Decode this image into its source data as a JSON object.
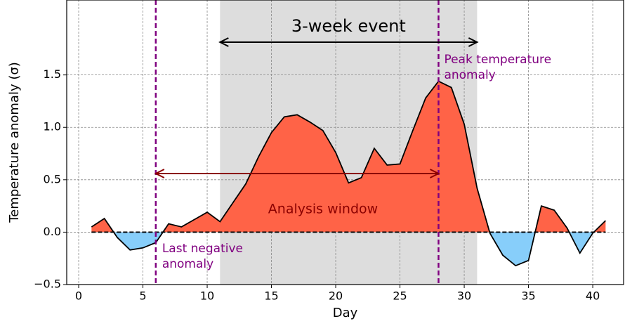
{
  "chart_data": {
    "type": "area",
    "x_label": "Day",
    "y_label": "Temperature anomaly (σ)",
    "x": [
      1,
      2,
      3,
      4,
      5,
      6,
      7,
      8,
      9,
      10,
      11,
      12,
      13,
      14,
      15,
      16,
      17,
      18,
      19,
      20,
      21,
      22,
      23,
      24,
      25,
      26,
      27,
      28,
      29,
      30,
      31,
      32,
      33,
      34,
      35,
      36,
      37,
      38,
      39,
      40,
      41
    ],
    "values": [
      0.05,
      0.13,
      -0.05,
      -0.17,
      -0.15,
      -0.1,
      0.08,
      0.05,
      0.12,
      0.19,
      0.1,
      0.28,
      0.46,
      0.72,
      0.95,
      1.1,
      1.12,
      1.05,
      0.97,
      0.76,
      0.47,
      0.52,
      0.8,
      0.64,
      0.65,
      0.97,
      1.28,
      1.44,
      1.38,
      1.03,
      0.42,
      -0.01,
      -0.22,
      -0.32,
      -0.27,
      0.25,
      0.21,
      0.04,
      -0.2,
      -0.01,
      0.11
    ],
    "positive_color": "#ff6347",
    "negative_color": "#87cefa",
    "line_color": "#000000",
    "xlim": [
      -0.93,
      42.4
    ],
    "ylim": [
      -0.5,
      2.215
    ],
    "xticks": [
      0,
      5,
      10,
      15,
      20,
      25,
      30,
      35,
      40
    ],
    "yticks": [
      {
        "value": -0.5,
        "label": "−0.5"
      },
      {
        "value": 0,
        "label": "0.0"
      },
      0.5,
      {
        "value": 1,
        "label": "1.0"
      },
      1.5
    ],
    "grid": true,
    "event": {
      "start": 11,
      "end": 31,
      "text": "3-week event",
      "color": "#dddddd"
    },
    "last_negative": {
      "x": 6,
      "lines": [
        "Last negative",
        "anomaly"
      ],
      "color": "#800080"
    },
    "peak": {
      "x": 28,
      "lines": [
        "Peak temperature",
        "anomaly"
      ],
      "color": "#800080"
    },
    "analysis_window": {
      "text": "Analysis window",
      "color": "#8b0000"
    }
  }
}
